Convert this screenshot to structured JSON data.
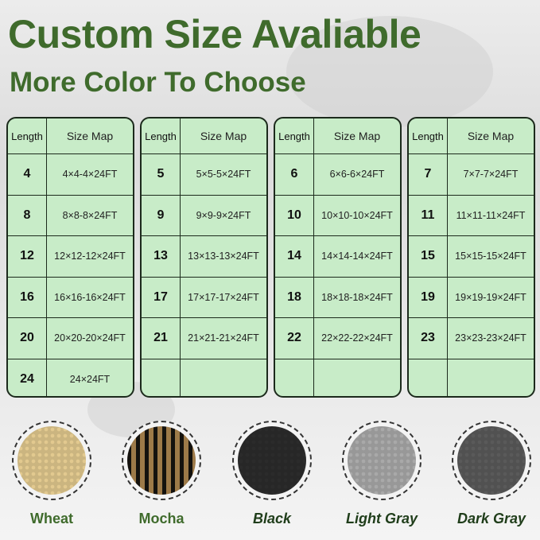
{
  "title": "Custom Size Avaliable",
  "subtitle": "More Color To Choose",
  "table_headers": {
    "length": "Length",
    "size_map": "Size Map"
  },
  "tables": [
    {
      "rows": [
        {
          "length": "4",
          "size": "4×4-4×24FT"
        },
        {
          "length": "8",
          "size": "8×8-8×24FT"
        },
        {
          "length": "12",
          "size": "12×12-12×24FT"
        },
        {
          "length": "16",
          "size": "16×16-16×24FT"
        },
        {
          "length": "20",
          "size": "20×20-20×24FT"
        },
        {
          "length": "24",
          "size": "24×24FT"
        }
      ]
    },
    {
      "rows": [
        {
          "length": "5",
          "size": "5×5-5×24FT"
        },
        {
          "length": "9",
          "size": "9×9-9×24FT"
        },
        {
          "length": "13",
          "size": "13×13-13×24FT"
        },
        {
          "length": "17",
          "size": "17×17-17×24FT"
        },
        {
          "length": "21",
          "size": "21×21-21×24FT"
        },
        {
          "length": "",
          "size": ""
        }
      ]
    },
    {
      "rows": [
        {
          "length": "6",
          "size": "6×6-6×24FT"
        },
        {
          "length": "10",
          "size": "10×10-10×24FT"
        },
        {
          "length": "14",
          "size": "14×14-14×24FT"
        },
        {
          "length": "18",
          "size": "18×18-18×24FT"
        },
        {
          "length": "22",
          "size": "22×22-22×24FT"
        },
        {
          "length": "",
          "size": ""
        }
      ]
    },
    {
      "rows": [
        {
          "length": "7",
          "size": "7×7-7×24FT"
        },
        {
          "length": "11",
          "size": "11×11-11×24FT"
        },
        {
          "length": "15",
          "size": "15×15-15×24FT"
        },
        {
          "length": "19",
          "size": "19×19-19×24FT"
        },
        {
          "length": "23",
          "size": "23×23-23×24FT"
        },
        {
          "length": "",
          "size": ""
        }
      ]
    }
  ],
  "colors": [
    {
      "name": "Wheat",
      "swatch": "#e2c98f",
      "label_color": "#3f6b2c",
      "italic": false
    },
    {
      "name": "Mocha",
      "swatch": "#b9a27a",
      "label_color": "#3f6b2c",
      "italic": false
    },
    {
      "name": "Black",
      "swatch": "#2b2b2b",
      "label_color": "#1f3d1a",
      "italic": true
    },
    {
      "name": "Light Gray",
      "swatch": "#a9a9a9",
      "label_color": "#1f3d1a",
      "italic": true
    },
    {
      "name": "Dark Gray",
      "swatch": "#5a5a5a",
      "label_color": "#1f3d1a",
      "italic": true
    }
  ]
}
